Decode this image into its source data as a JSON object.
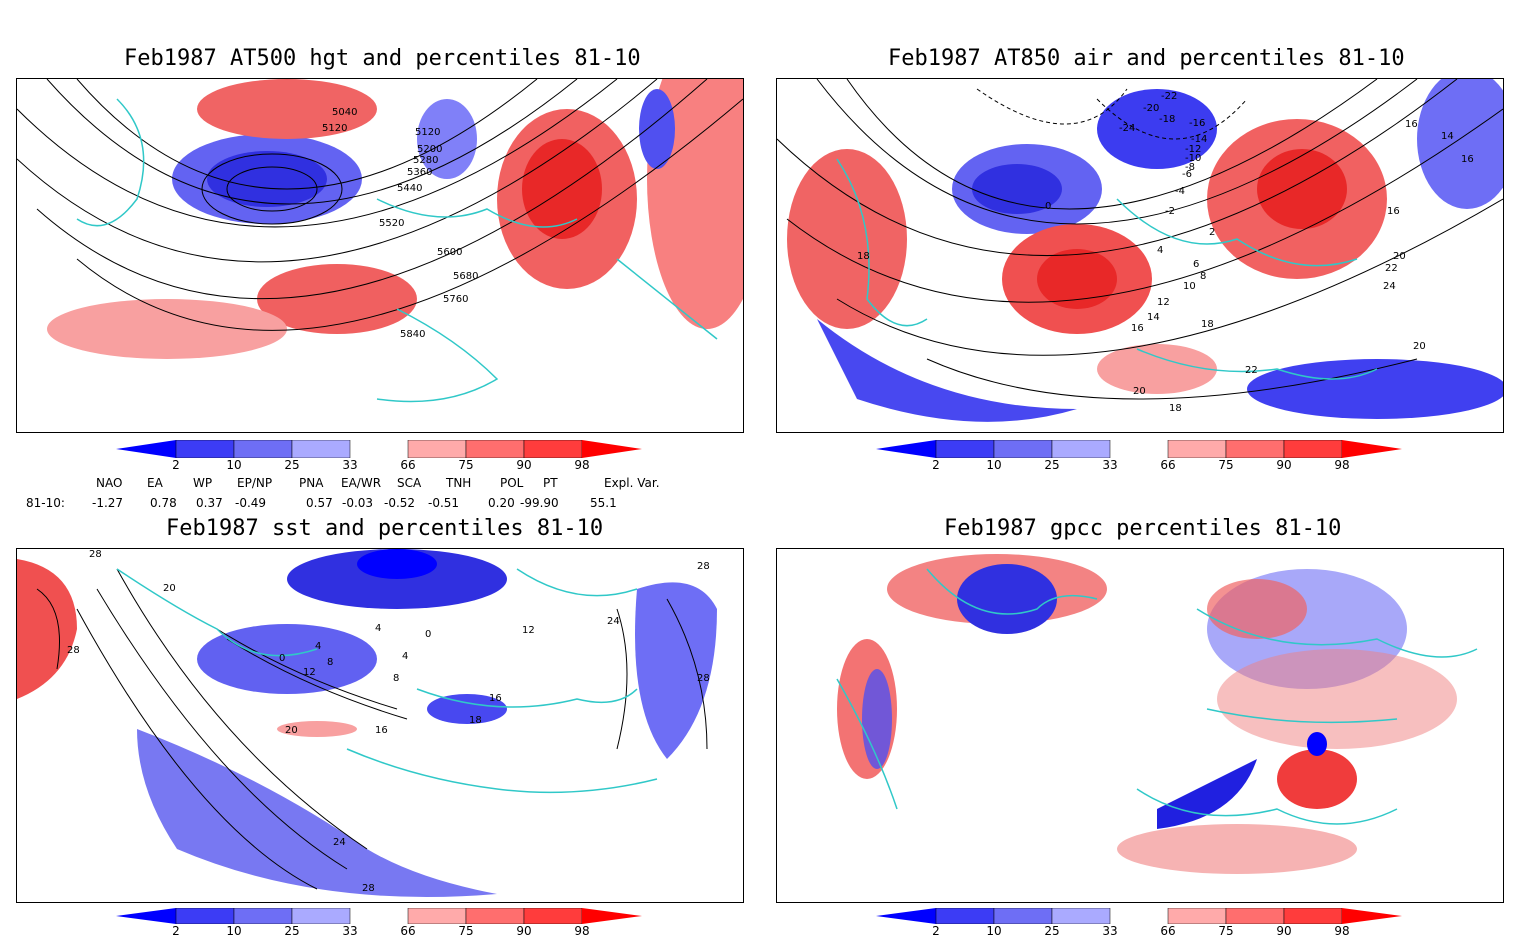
{
  "panels": {
    "p1": {
      "title": "Feb1987 AT500 hgt and percentiles 81-10",
      "contour_labels": [
        "5040",
        "5120",
        "5120",
        "5200",
        "5280",
        "5360",
        "5440",
        "5520",
        "5600",
        "5680",
        "5760",
        "5840"
      ]
    },
    "p2": {
      "title": "Feb1987 AT850 air and percentiles 81-10",
      "contour_labels": [
        "-22",
        "-20",
        "-24",
        "-18",
        "-16",
        "-14",
        "-12",
        "-10",
        "-8",
        "-6",
        "-4",
        "-2",
        "0",
        "2",
        "4",
        "6",
        "8",
        "10",
        "12",
        "14",
        "16",
        "18",
        "18",
        "20",
        "22",
        "24",
        "16",
        "16",
        "14",
        "16",
        "20",
        "22",
        "20",
        "18"
      ]
    },
    "p3": {
      "title": "Feb1987 sst and percentiles 81-10",
      "contour_labels": [
        "28",
        "28",
        "20",
        "0",
        "4",
        "8",
        "12",
        "16",
        "20",
        "24",
        "28",
        "24",
        "28",
        "28",
        "16",
        "18",
        "4",
        "0",
        "4",
        "8",
        "12"
      ]
    },
    "p4": {
      "title": "Feb1987 gpcc percentiles 81-10",
      "contour_labels": []
    }
  },
  "colorbar": {
    "labels": [
      "2",
      "10",
      "25",
      "33",
      "66",
      "75",
      "90",
      "98"
    ],
    "colors": [
      "#0000ff",
      "#3c3cf5",
      "#6e6ef5",
      "#aaaaff",
      "#ffaaaa",
      "#ff6e6e",
      "#ff3c3c",
      "#ff0000"
    ]
  },
  "teleconnections": {
    "row_label": "81-10:",
    "headers": [
      "NAO",
      "EA",
      "WP",
      "EP/NP",
      "PNA",
      "EA/WR",
      "SCA",
      "TNH",
      "POL",
      "PT",
      "Expl. Var."
    ],
    "values": [
      "-1.27",
      "0.78",
      "0.37",
      "-0.49",
      "0.57",
      "-0.03",
      "-0.52",
      "-0.51",
      "0.20",
      "-99.90",
      "55.1"
    ]
  },
  "colors": {
    "coast": "#30c8c8",
    "contour": "#000000",
    "blue": "#4848f0",
    "red": "#f03c3c"
  }
}
